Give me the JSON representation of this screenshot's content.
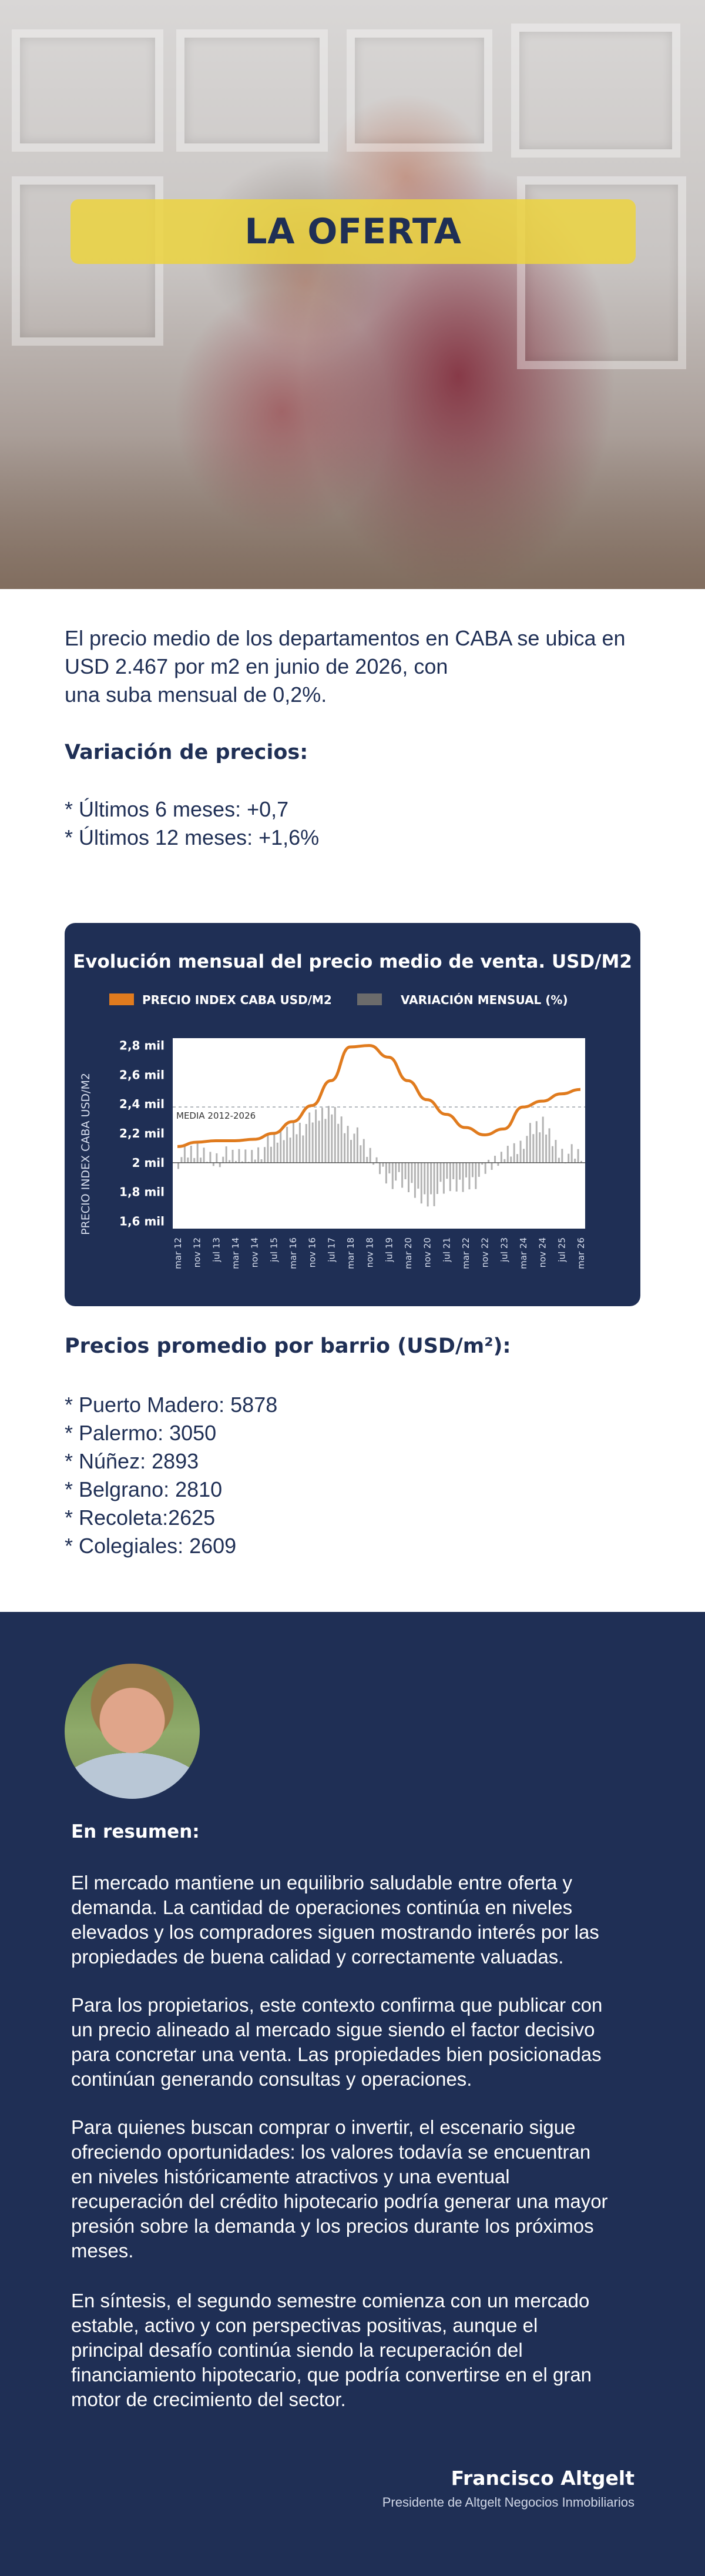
{
  "hero": {
    "title": "LA OFERTA"
  },
  "intro": {
    "line1": "El precio medio de los departamentos en CABA se ubica en",
    "line2": "USD 2.467 por m2 en junio de 2026, con",
    "line3": "una suba mensual de 0,2%."
  },
  "variation": {
    "heading": "Variación de precios:",
    "items": [
      "* Últimos 6 meses: +0,7",
      "* Últimos 12 meses: +1,6%"
    ]
  },
  "chart": {
    "title": "Evolución mensual del precio medio de venta. USD/M2",
    "legend": [
      "PRECIO INDEX CABA USD/M2",
      "VARIACIÓN MENSUAL (%)"
    ],
    "ylabel": "PRECIO INDEX CABA USD/M2",
    "yticks": [
      "2,8 mil",
      "2,6 mil",
      "2,4 mil",
      "2,2 mil",
      "2 mil",
      "1,8 mil",
      "1,6 mil"
    ],
    "xticks": [
      "mar 12",
      "nov 12",
      "jul 13",
      "mar 14",
      "nov 14",
      "jul 15",
      "mar 16",
      "nov 16",
      "jul 17",
      "mar 18",
      "nov 18",
      "jul 19",
      "mar 20",
      "nov 20",
      "jul 21",
      "mar 22",
      "nov 22",
      "jul 23",
      "mar 24",
      "nov 24",
      "jul 25",
      "mar 26"
    ],
    "media_label": "MEDIA 2012-2026",
    "colors": {
      "price": "#e07b1e",
      "variation": "#6b6b6b",
      "card": "#1f2f55"
    }
  },
  "chart_data": {
    "type": "line",
    "title": "Evolución mensual del precio medio de venta. USD/M2",
    "ylabel": "PRECIO INDEX CABA USD/M2",
    "ylim": [
      1550,
      2850
    ],
    "x": [
      "mar 12",
      "nov 12",
      "jul 13",
      "mar 14",
      "nov 14",
      "jul 15",
      "mar 16",
      "nov 16",
      "jul 17",
      "mar 18",
      "nov 18",
      "jul 19",
      "mar 20",
      "nov 20",
      "jul 21",
      "mar 22",
      "nov 22",
      "jul 23",
      "mar 24",
      "nov 24",
      "jul 25",
      "mar 26"
    ],
    "series": [
      {
        "name": "PRECIO INDEX CABA USD/M2",
        "values": [
          2110,
          2140,
          2150,
          2150,
          2160,
          2200,
          2280,
          2390,
          2560,
          2790,
          2800,
          2720,
          2560,
          2430,
          2330,
          2240,
          2190,
          2230,
          2380,
          2420,
          2470,
          2500
        ]
      },
      {
        "name": "VARIACIÓN MENSUAL (%)",
        "values": [
          0.2,
          0.5,
          0.3,
          0.2,
          0.5,
          0.9,
          1.6,
          1.8,
          2.4,
          1.5,
          0.3,
          -0.6,
          -1.2,
          -1.6,
          -1.2,
          -0.9,
          -0.5,
          0.4,
          1.1,
          1.7,
          0.5,
          0.2
        ]
      }
    ],
    "reference_line": {
      "label": "MEDIA 2012-2026",
      "value": 2380
    },
    "legend": "top"
  },
  "barrios": {
    "heading": "Precios promedio por barrio (USD/m²):",
    "items": [
      "* Puerto Madero: 5878",
      "* Palermo: 3050",
      "* Núñez: 2893",
      "* Belgrano: 2810",
      "* Recoleta:2625",
      "* Colegiales: 2609"
    ]
  },
  "summary": {
    "heading": "En resumen:",
    "p1": [
      "El mercado mantiene un equilibrio saludable entre oferta y",
      "demanda. La cantidad de operaciones continúa en niveles",
      "elevados y los compradores siguen mostrando interés por las",
      "propiedades de buena calidad y correctamente valuadas."
    ],
    "p2": [
      "Para los propietarios, este contexto confirma que publicar con",
      "un precio alineado al mercado sigue siendo el factor decisivo",
      "para concretar una venta. Las propiedades bien posicionadas",
      "continúan generando consultas y operaciones."
    ],
    "p3": [
      "Para quienes buscan comprar o invertir, el escenario sigue",
      "ofreciendo oportunidades: los valores todavía se encuentran",
      "en niveles históricamente atractivos y una eventual",
      "recuperación del crédito hipotecario podría generar una mayor",
      "presión sobre la demanda y los precios durante los próximos",
      "meses."
    ],
    "p4": [
      "En síntesis, el segundo semestre comienza con un mercado",
      "estable, activo y con perspectivas positivas, aunque el",
      "principal desafío continúa siendo la recuperación del",
      "financiamiento hipotecario, que podría convertirse en el gran",
      "motor de crecimiento del sector."
    ],
    "author": "Francisco Altgelt",
    "role": "Presidente de Altgelt Negocios Inmobiliarios"
  }
}
